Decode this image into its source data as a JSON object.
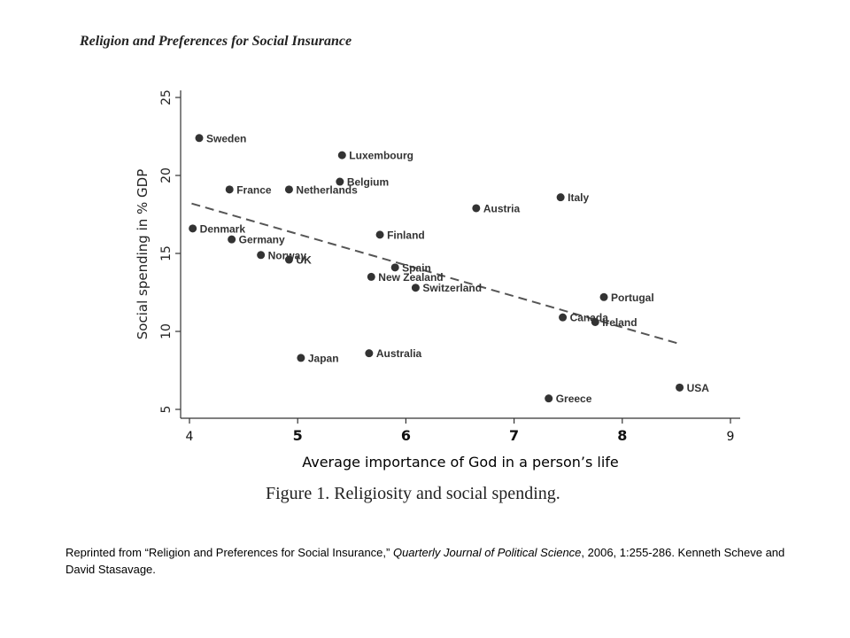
{
  "header": "Religion and Preferences for Social Insurance",
  "caption": "Figure 1. Religiosity and social spending.",
  "credit": {
    "before": "Reprinted from “Religion and Preferences for Social Insurance,” ",
    "journal": "Quarterly Journal of Political Science",
    "after": ", 2006, 1:255-286. Kenneth Scheve and David Stasavage."
  },
  "chart_data": {
    "type": "scatter",
    "xlabel": "Average importance  of God  in a person’s life",
    "ylabel": "Social spending in % GDP",
    "xlim": [
      4,
      9
    ],
    "ylim": [
      5,
      25
    ],
    "xticks": [
      4,
      5,
      6,
      7,
      8,
      9
    ],
    "yticks": [
      5,
      10,
      15,
      20,
      25
    ],
    "grid": false,
    "points": [
      {
        "label": "Sweden",
        "x": 4.09,
        "y": 22.4
      },
      {
        "label": "Luxembourg",
        "x": 5.41,
        "y": 21.3
      },
      {
        "label": "Belgium",
        "x": 5.39,
        "y": 19.6
      },
      {
        "label": "France",
        "x": 4.37,
        "y": 19.1
      },
      {
        "label": "Netherlands",
        "x": 4.92,
        "y": 19.1
      },
      {
        "label": "Italy",
        "x": 7.43,
        "y": 18.6
      },
      {
        "label": "Austria",
        "x": 6.65,
        "y": 17.9
      },
      {
        "label": "Denmark",
        "x": 4.03,
        "y": 16.6
      },
      {
        "label": "Finland",
        "x": 5.76,
        "y": 16.2
      },
      {
        "label": "Germany",
        "x": 4.39,
        "y": 15.9
      },
      {
        "label": "Norway",
        "x": 4.66,
        "y": 14.9
      },
      {
        "label": "UK",
        "x": 4.92,
        "y": 14.6
      },
      {
        "label": "Spain",
        "x": 5.9,
        "y": 14.1
      },
      {
        "label": "New Zealand",
        "x": 5.68,
        "y": 13.5
      },
      {
        "label": "Switzerland",
        "x": 6.09,
        "y": 12.8
      },
      {
        "label": "Portugal",
        "x": 7.83,
        "y": 12.2
      },
      {
        "label": "Canada",
        "x": 7.45,
        "y": 10.9
      },
      {
        "label": "Ireland",
        "x": 7.75,
        "y": 10.6
      },
      {
        "label": "Australia",
        "x": 5.66,
        "y": 8.6
      },
      {
        "label": "Japan",
        "x": 5.03,
        "y": 8.3
      },
      {
        "label": "USA",
        "x": 8.53,
        "y": 6.4
      },
      {
        "label": "Greece",
        "x": 7.32,
        "y": 5.7
      }
    ],
    "fit_line": {
      "x": [
        4.02,
        8.53
      ],
      "y": [
        18.2,
        9.2
      ]
    },
    "colors": {
      "point": "#333333",
      "line": "#555555",
      "axis": "#333333"
    }
  }
}
